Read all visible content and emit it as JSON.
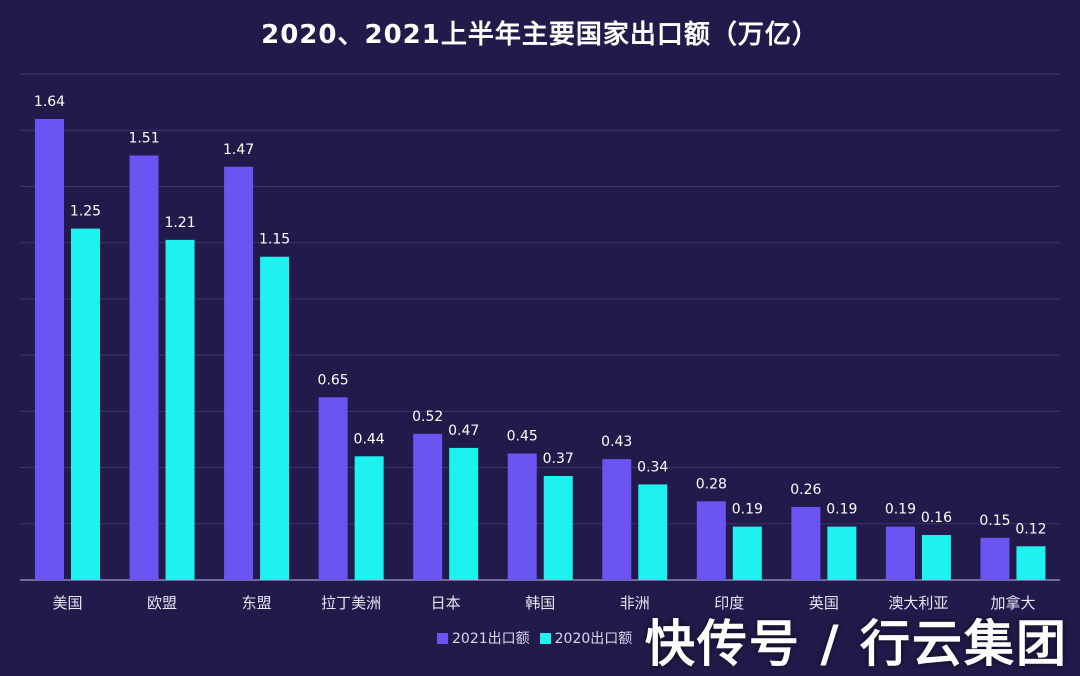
{
  "chart_data": {
    "type": "bar",
    "title": "2020、2021上半年主要国家出口额（万亿）",
    "categories": [
      "美国",
      "欧盟",
      "东盟",
      "拉丁美洲",
      "日本",
      "韩国",
      "非洲",
      "印度",
      "英国",
      "澳大利亚",
      "加拿大"
    ],
    "series": [
      {
        "name": "2021出口额",
        "color": "#6a55f2",
        "values": [
          1.64,
          1.51,
          1.47,
          0.65,
          0.52,
          0.45,
          0.43,
          0.28,
          0.26,
          0.19,
          0.15
        ]
      },
      {
        "name": "2020出口额",
        "color": "#1ef2ee",
        "values": [
          1.25,
          1.21,
          1.15,
          0.44,
          0.47,
          0.37,
          0.34,
          0.19,
          0.19,
          0.16,
          0.12
        ]
      }
    ],
    "ylim": [
      0,
      1.8
    ],
    "grid": true,
    "legend_position": "bottom"
  },
  "watermark": "快传号 / 行云集团"
}
